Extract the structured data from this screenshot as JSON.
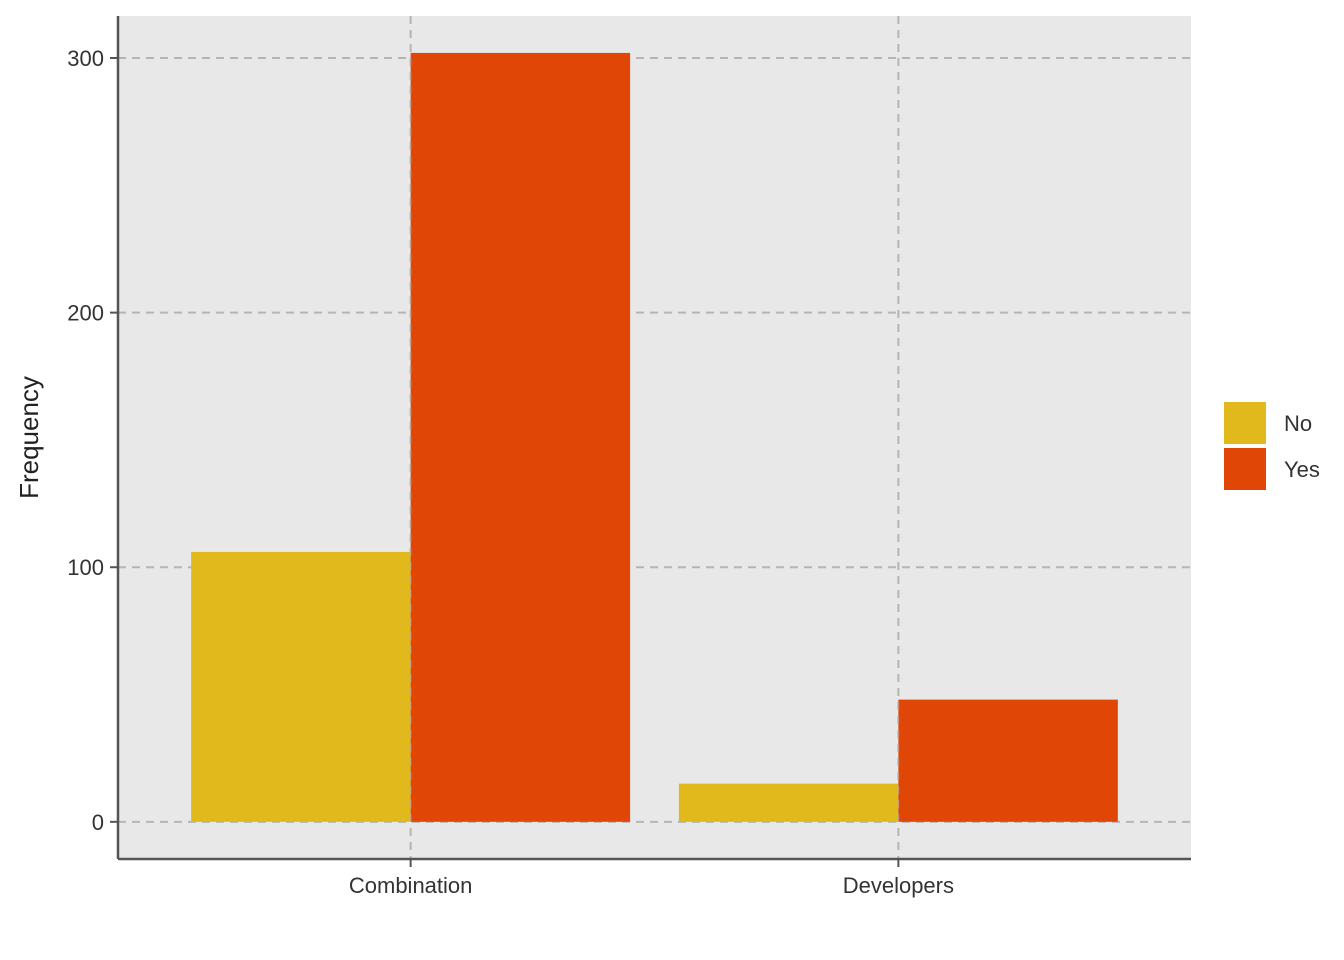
{
  "chart_data": {
    "type": "bar",
    "categories": [
      "Combination",
      "Developers"
    ],
    "series": [
      {
        "name": "No",
        "values": [
          106,
          15
        ],
        "color": "#E1B91C"
      },
      {
        "name": "Yes",
        "values": [
          302,
          48
        ],
        "color": "#E04606"
      }
    ],
    "title": "",
    "xlabel": "",
    "ylabel": "Frequency",
    "ylim": [
      -14.6,
      316.5
    ],
    "yticks": [
      0,
      100,
      200,
      300
    ],
    "ytick_labels": [
      "0",
      "100",
      "200",
      "300"
    ],
    "grid": true,
    "grid_style": "dashed",
    "legend_position": "right",
    "panel_background": "#E8E8E8",
    "grid_color": "#B5B5B5",
    "axis_color": "#555555"
  }
}
